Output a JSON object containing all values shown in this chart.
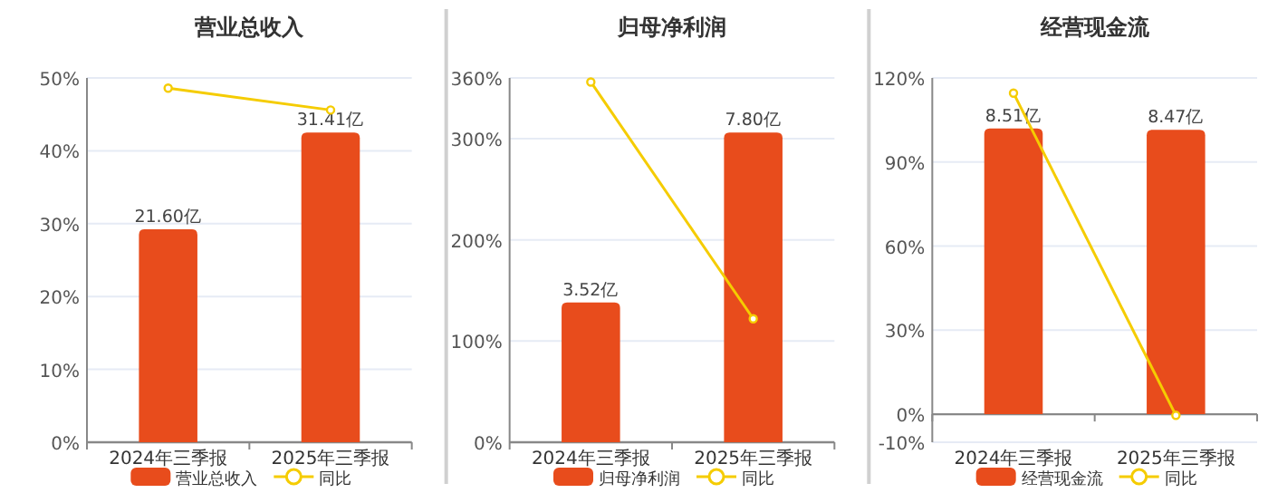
{
  "chart_data": [
    {
      "type": "bar",
      "title": "营业总收入",
      "categories": [
        "2024年三季报",
        "2025年三季报"
      ],
      "series": [
        {
          "name": "营业总收入",
          "axis": "y2",
          "color": "#e84c1c",
          "values": [
            21.6,
            31.41
          ],
          "value_labels": [
            "21.60亿",
            "31.41亿"
          ]
        },
        {
          "name": "同比",
          "type": "line",
          "axis": "y",
          "color": "#f5cc00",
          "values": [
            48.6,
            45.6
          ]
        }
      ],
      "ylim": [
        0,
        50
      ],
      "yticks": [
        {
          "value": 0,
          "label": "0%"
        },
        {
          "value": 10,
          "label": "10%"
        },
        {
          "value": 20,
          "label": "20%"
        },
        {
          "value": 30,
          "label": "30%"
        },
        {
          "value": 40,
          "label": "40%"
        },
        {
          "value": 50,
          "label": "50%"
        }
      ],
      "grid": "y",
      "legend": "bottom",
      "marker": "circle",
      "line_style": "solid"
    },
    {
      "type": "bar",
      "title": "归母净利润",
      "categories": [
        "2024年三季报",
        "2025年三季报"
      ],
      "series": [
        {
          "name": "归母净利润",
          "axis": "y2",
          "color": "#e84c1c",
          "values": [
            3.52,
            7.8
          ],
          "value_labels": [
            "3.52亿",
            "7.80亿"
          ]
        },
        {
          "name": "同比",
          "type": "line",
          "axis": "y",
          "color": "#f5cc00",
          "values": [
            356,
            122
          ]
        }
      ],
      "ylim": [
        0,
        360
      ],
      "yticks": [
        {
          "value": 0,
          "label": "0%"
        },
        {
          "value": 100,
          "label": "100%"
        },
        {
          "value": 200,
          "label": "200%"
        },
        {
          "value": 300,
          "label": "300%"
        },
        {
          "value": 360,
          "label": "360%"
        }
      ],
      "grid": "y",
      "legend": "bottom",
      "marker": "circle",
      "line_style": "solid"
    },
    {
      "type": "bar",
      "title": "经营现金流",
      "categories": [
        "2024年三季报",
        "2025年三季报"
      ],
      "series": [
        {
          "name": "经营现金流",
          "axis": "y2",
          "color": "#e84c1c",
          "values": [
            8.51,
            8.47
          ],
          "value_labels": [
            "8.51亿",
            "8.47亿"
          ]
        },
        {
          "name": "同比",
          "type": "line",
          "axis": "y",
          "color": "#f5cc00",
          "values": [
            114.6,
            -0.4
          ]
        }
      ],
      "ylim": [
        -10,
        120
      ],
      "yticks": [
        {
          "value": -10,
          "label": "-10%"
        },
        {
          "value": 0,
          "label": "0%"
        },
        {
          "value": 30,
          "label": "30%"
        },
        {
          "value": 60,
          "label": "60%"
        },
        {
          "value": 90,
          "label": "90%"
        },
        {
          "value": 120,
          "label": "120%"
        }
      ],
      "grid": "y",
      "legend": "bottom",
      "marker": "circle",
      "line_style": "solid"
    }
  ]
}
